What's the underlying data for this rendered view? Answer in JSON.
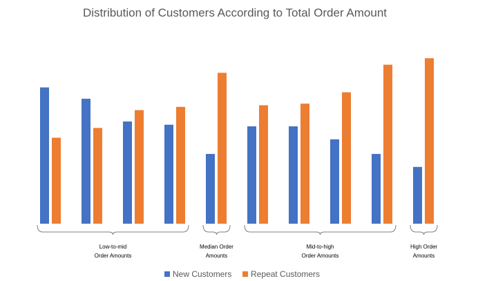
{
  "chart_data": {
    "type": "bar",
    "title": "Distribution of Customers According to Total Order Amount",
    "xlabel": "",
    "ylabel": "",
    "grid": false,
    "legend_position": "bottom",
    "ylim": [
      0,
      100
    ],
    "series": [
      {
        "name": "New Customers",
        "color": "#4472C4",
        "values": [
          84,
          77,
          63,
          61,
          43,
          60,
          60,
          52,
          43,
          35
        ]
      },
      {
        "name": "Repeat Customers",
        "color": "#ED7D31",
        "values": [
          53,
          59,
          70,
          72,
          93,
          73,
          74,
          81,
          98,
          102
        ]
      }
    ],
    "groups": [
      {
        "label_lines": [
          "Low-to-mid",
          "Order Amounts"
        ],
        "count": 4
      },
      {
        "label_lines": [
          "Median Order",
          "Amounts"
        ],
        "count": 1
      },
      {
        "label_lines": [
          "Mid-to-high",
          "Order Amounts"
        ],
        "count": 4
      },
      {
        "label_lines": [
          "High Order",
          "Amounts"
        ],
        "count": 1
      }
    ]
  }
}
